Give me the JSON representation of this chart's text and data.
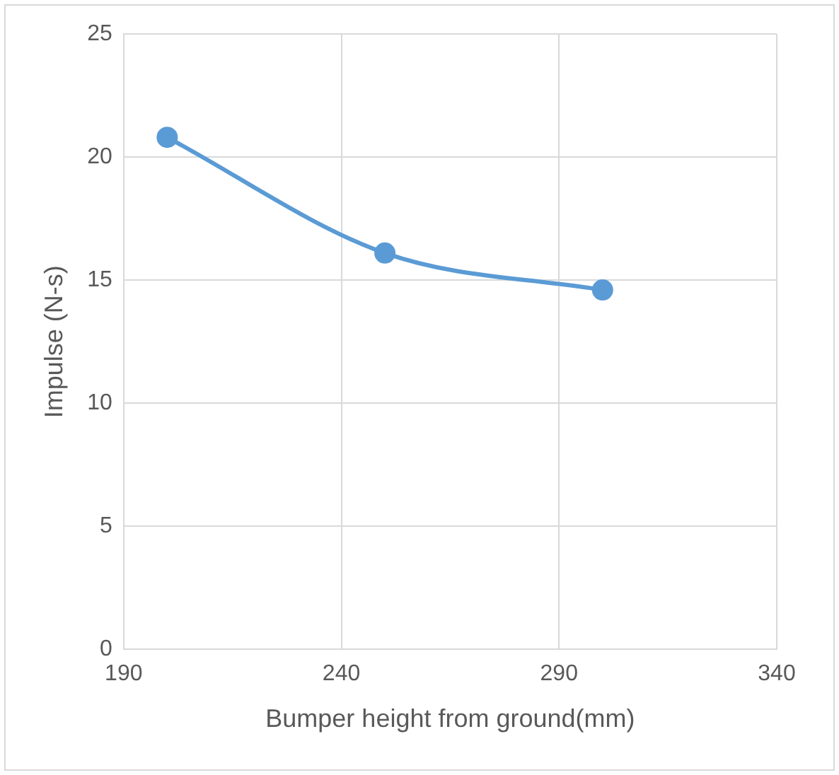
{
  "chart_data": {
    "type": "line",
    "xlabel": "Bumper height from ground(mm)",
    "ylabel": "Impulse (N-s)",
    "x": [
      200,
      250,
      300
    ],
    "series": [
      {
        "color": "#5b9bd5",
        "values": [
          20.8,
          16.1,
          14.6
        ]
      }
    ],
    "xlim": [
      190,
      340
    ],
    "xticks": [
      190,
      240,
      290,
      340
    ],
    "ylim": [
      0,
      25
    ],
    "yticks": [
      0,
      5,
      10,
      15,
      20,
      25
    ],
    "grid": true,
    "marker": "circle",
    "line_style": "solid"
  }
}
